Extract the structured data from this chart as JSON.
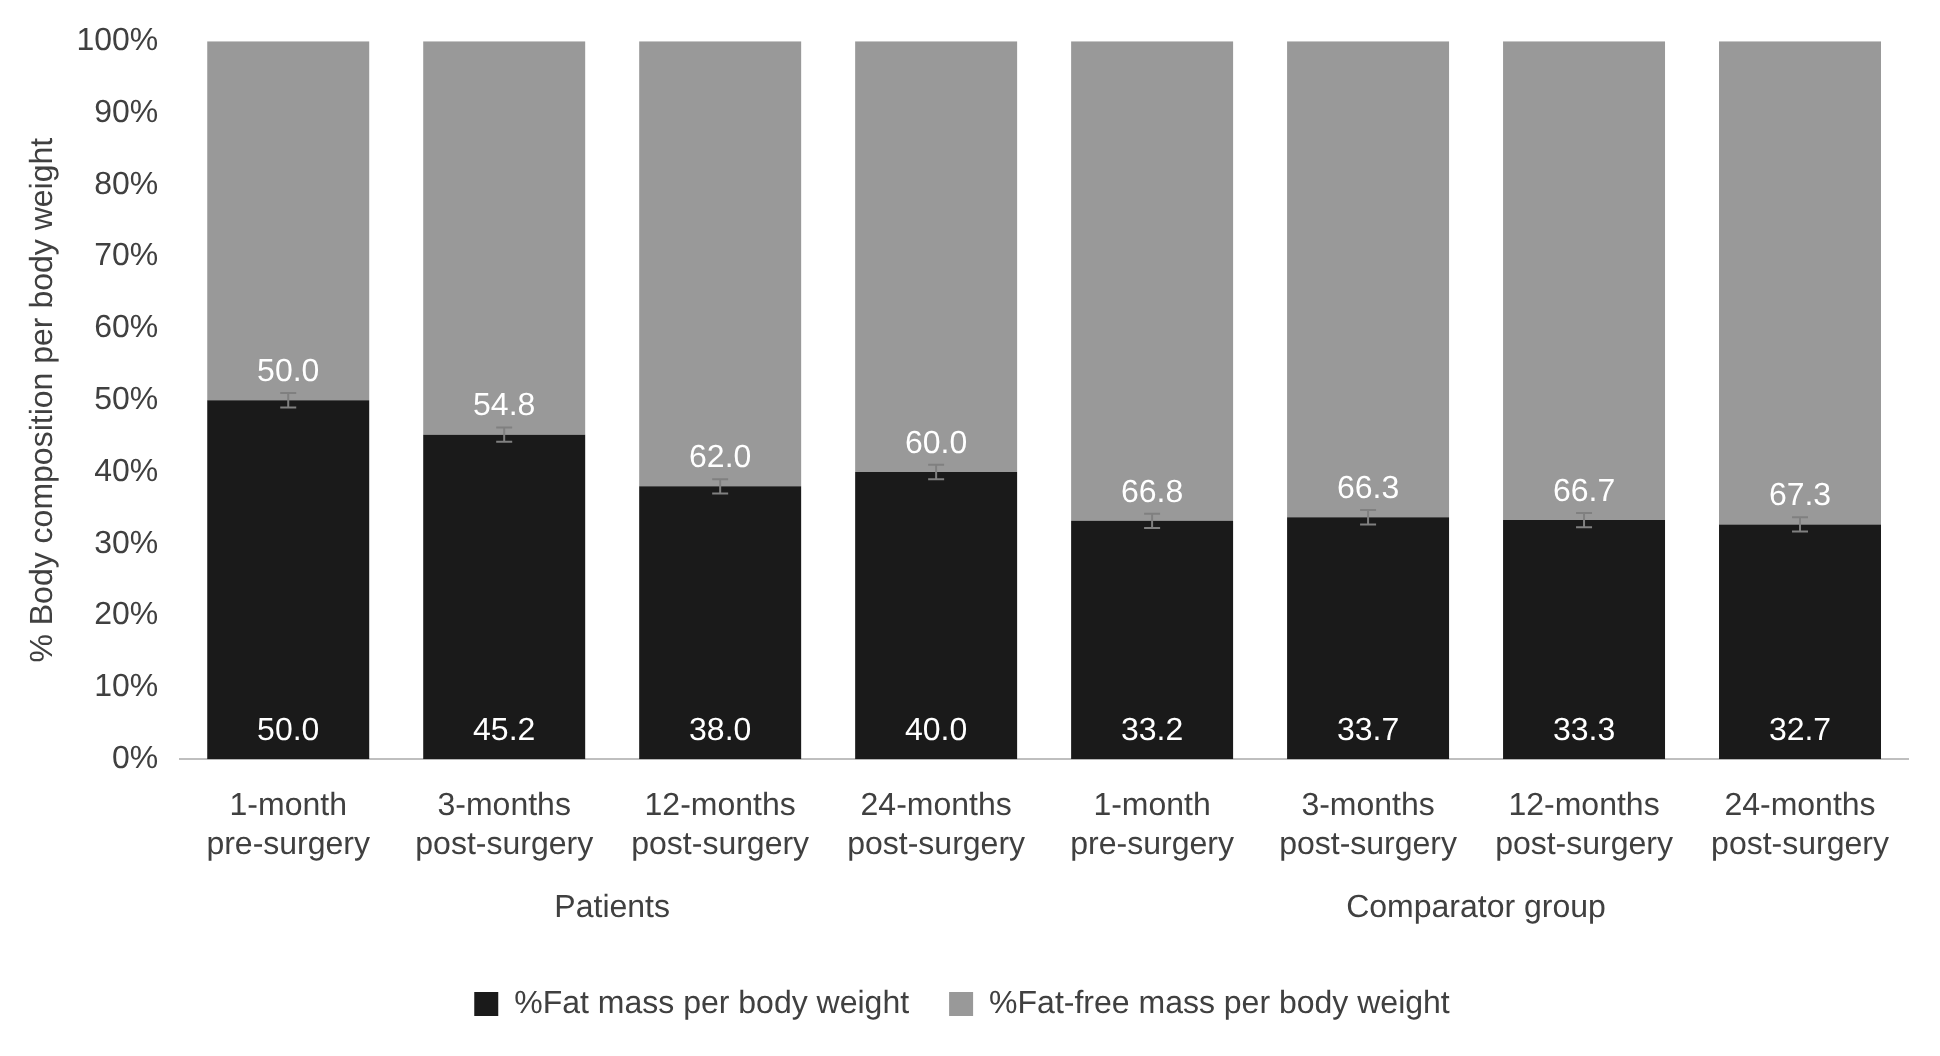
{
  "chart_data": {
    "type": "bar",
    "stacked": true,
    "ylabel": "% Body composition per body weight",
    "categories": [
      "1-month pre-surgery",
      "3-months post-surgery",
      "12-months post-surgery",
      "24-months post-surgery",
      "1-month pre-surgery",
      "3-months post-surgery",
      "12-months post-surgery",
      "24-months post-surgery"
    ],
    "series": [
      {
        "name": "%Fat mass per body weight",
        "color": "#1a1a1a",
        "values": [
          50.0,
          45.2,
          38.0,
          40.0,
          33.2,
          33.7,
          33.3,
          32.7
        ],
        "value_labels": [
          "50.0",
          "45.2",
          "38.0",
          "40.0",
          "33.2",
          "33.7",
          "33.3",
          "32.7"
        ],
        "errors": [
          1,
          1,
          1,
          1,
          1,
          1,
          1,
          1
        ]
      },
      {
        "name": "%Fat-free mass per body weight",
        "color": "#999999",
        "values": [
          50.0,
          54.8,
          62.0,
          60.0,
          66.8,
          66.3,
          66.7,
          67.3
        ],
        "value_labels": [
          "50.0",
          "54.8",
          "62.0",
          "60.0",
          "66.8",
          "66.3",
          "66.7",
          "67.3"
        ]
      }
    ],
    "ylim": [
      0,
      100
    ],
    "yticks": [
      {
        "value": 0,
        "label": "0%"
      },
      {
        "value": 10,
        "label": "10%"
      },
      {
        "value": 20,
        "label": "20%"
      },
      {
        "value": 30,
        "label": "30%"
      },
      {
        "value": 40,
        "label": "40%"
      },
      {
        "value": 50,
        "label": "50%"
      },
      {
        "value": 60,
        "label": "60%"
      },
      {
        "value": 70,
        "label": "70%"
      },
      {
        "value": 80,
        "label": "80%"
      },
      {
        "value": 90,
        "label": "90%"
      },
      {
        "value": 100,
        "label": "100%"
      }
    ],
    "annotations": [
      "Patients",
      "Comparator group"
    ],
    "legend": "bottom",
    "grid": false
  }
}
